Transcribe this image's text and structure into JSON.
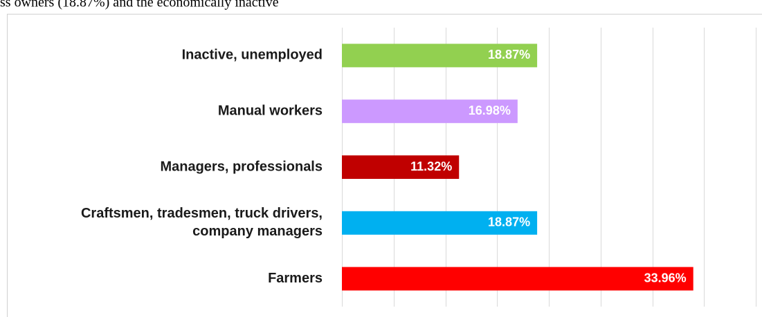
{
  "header_text": "ss owners (18.87%) and the economically inactive",
  "chart_data": {
    "type": "bar",
    "orientation": "horizontal",
    "categories": [
      "Inactive, unemployed",
      "Manual workers",
      "Managers, professionals",
      "Craftsmen, tradesmen, truck drivers,\ncompany managers",
      "Farmers"
    ],
    "values": [
      18.87,
      16.98,
      11.32,
      18.87,
      33.96
    ],
    "value_labels": [
      "18.87%",
      "16.98%",
      "11.32%",
      "18.87%",
      "33.96%"
    ],
    "colors": [
      "#92d050",
      "#cc99ff",
      "#c00000",
      "#00b0f0",
      "#ff0000"
    ],
    "xlim": [
      0,
      40
    ],
    "xticks": [
      0,
      5,
      10,
      15,
      20,
      25,
      30,
      35,
      40
    ],
    "grid": true
  }
}
